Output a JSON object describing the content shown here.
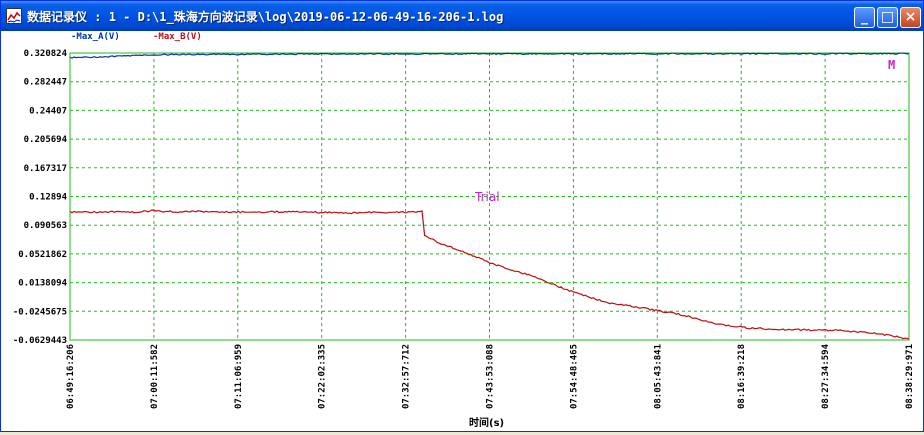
{
  "window": {
    "title_cn": "数据记录仪",
    "title_path": " : 1 - D:\\1_珠海方向波记录\\log\\2019-06-12-06-49-16-206-1.log",
    "minimize_label": "_",
    "maximize_label": "□",
    "close_label": "×"
  },
  "legend": {
    "series_a": "-Max_A(V)",
    "series_b": "-Max_B(V)"
  },
  "overlay": {
    "trial_text": "Trial",
    "corner_marker": "M"
  },
  "colors": {
    "series_a": "#0033aa",
    "series_b": "#bb1111",
    "grid": "#22bb22",
    "overlay": "#cc22cc"
  },
  "chart_data": {
    "type": "line",
    "xlabel": "时间(s)",
    "ylabel": "",
    "x_tick_labels": [
      "06:49:16:206",
      "07:00:11:582",
      "07:11:06:959",
      "07:22:02:335",
      "07:32:57:712",
      "07:43:53:088",
      "07:54:48:465",
      "08:05:43:841",
      "08:16:39:218",
      "08:27:34:594",
      "08:38:29:971"
    ],
    "y_tick_labels": [
      "0.320824",
      "0.282447",
      "0.24407",
      "0.205694",
      "0.167317",
      "0.12894",
      "0.090563",
      "0.0521862",
      "0.0138094",
      "-0.0245675",
      "-0.0629443"
    ],
    "ylim": [
      -0.0629443,
      0.320824
    ],
    "x_range_seconds": [
      0,
      6553.765
    ],
    "grid": true,
    "series": [
      {
        "name": "-Max_A(V)",
        "x": [
          0,
          300,
          655,
          1000,
          1500,
          2000,
          2500,
          3000,
          3500,
          4000,
          4500,
          5000,
          5500,
          6000,
          6553
        ],
        "y": [
          0.3146,
          0.316,
          0.3185,
          0.319,
          0.3193,
          0.3195,
          0.3196,
          0.3197,
          0.3197,
          0.3198,
          0.3198,
          0.3198,
          0.3198,
          0.3199,
          0.3199
        ]
      },
      {
        "name": "-Max_B(V)",
        "x": [
          0,
          300,
          500,
          655,
          800,
          1000,
          1300,
          1600,
          1900,
          2200,
          2400,
          2600,
          2750,
          2770,
          2900,
          3100,
          3300,
          3600,
          3900,
          4200,
          4500,
          4800,
          5000,
          5300,
          5600,
          6000,
          6300,
          6553
        ],
        "y": [
          0.108,
          0.1085,
          0.108,
          0.11,
          0.1085,
          0.109,
          0.108,
          0.1085,
          0.108,
          0.107,
          0.108,
          0.108,
          0.109,
          0.076,
          0.066,
          0.053,
          0.039,
          0.023,
          0.003,
          -0.013,
          -0.021,
          -0.03,
          -0.04,
          -0.047,
          -0.049,
          -0.05,
          -0.054,
          -0.0615
        ]
      }
    ]
  }
}
